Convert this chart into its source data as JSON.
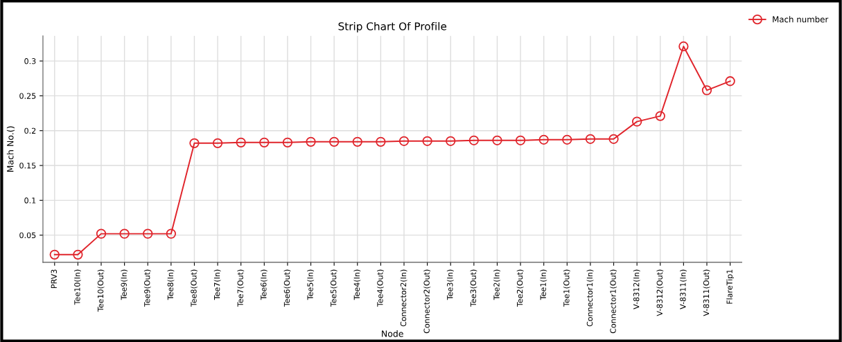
{
  "chart_data": {
    "type": "line",
    "title": "Strip Chart Of Profile",
    "xlabel": "Node",
    "ylabel": "Mach No.()",
    "categories": [
      "PRV3",
      "Tee10(In)",
      "Tee10(Out)",
      "Tee9(In)",
      "Tee9(Out)",
      "Tee8(In)",
      "Tee8(Out)",
      "Tee7(In)",
      "Tee7(Out)",
      "Tee6(In)",
      "Tee6(Out)",
      "Tee5(In)",
      "Tee5(Out)",
      "Tee4(In)",
      "Tee4(Out)",
      "Connector2(In)",
      "Connector2(Out)",
      "Tee3(In)",
      "Tee3(Out)",
      "Tee2(In)",
      "Tee2(Out)",
      "Tee1(In)",
      "Tee1(Out)",
      "Connector1(In)",
      "Connector1(Out)",
      "V-8312(In)",
      "V-8312(Out)",
      "V-8311(In)",
      "V-8311(Out)",
      "FlareTip1"
    ],
    "series": [
      {
        "name": "Mach number",
        "color": "#e0242b",
        "values": [
          0.022,
          0.022,
          0.052,
          0.052,
          0.052,
          0.052,
          0.182,
          0.182,
          0.183,
          0.183,
          0.183,
          0.184,
          0.184,
          0.184,
          0.184,
          0.185,
          0.185,
          0.185,
          0.186,
          0.186,
          0.186,
          0.187,
          0.187,
          0.188,
          0.188,
          0.213,
          0.221,
          0.321,
          0.258,
          0.271
        ]
      }
    ],
    "ylim": [
      0.011,
      0.336
    ],
    "yticks": [
      0.05,
      0.1,
      0.15,
      0.2,
      0.25,
      0.3
    ],
    "grid": true,
    "legend": "top right",
    "marker": "circle",
    "line_style": "solid"
  }
}
